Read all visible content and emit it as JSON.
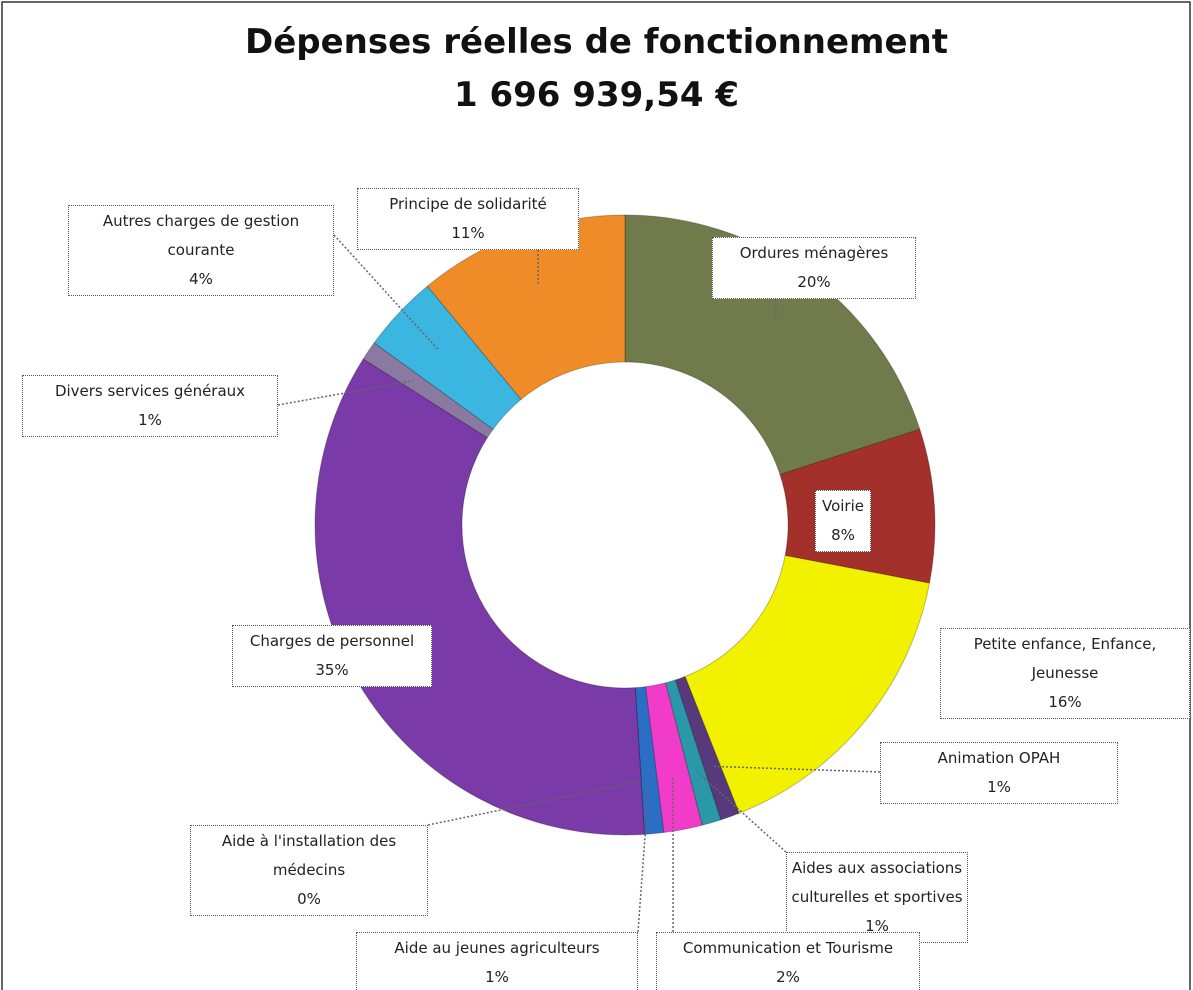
{
  "chart_data": {
    "type": "donut",
    "title": "Dépenses réelles de fonctionnement",
    "subtitle": "1 696 939,54 €",
    "categories": [
      "Ordures ménagères",
      "Voirie",
      "Petite enfance, Enfance, Jeunesse",
      "Animation OPAH",
      "Aides aux associations culturelles et sportives",
      "Communication et Tourisme",
      "Aide au jeunes agriculteurs",
      "Aide à l'installation des médecins",
      "Charges de personnel",
      "Divers services généraux",
      "Autres charges de gestion courante",
      "Principe de solidarité"
    ],
    "values": [
      20,
      8,
      16,
      1,
      1,
      2,
      1,
      0,
      35,
      1,
      4,
      11
    ],
    "value_labels": [
      "20%",
      "8%",
      "16%",
      "1%",
      "1%",
      "2%",
      "1%",
      "0%",
      "35%",
      "1%",
      "4%",
      "11%"
    ],
    "colors": [
      "#6f7b4b",
      "#a3302b",
      "#f2f200",
      "#583a7c",
      "#2a98a8",
      "#f03cc8",
      "#2a6ec6",
      "#c01f3a",
      "#7a3aa8",
      "#8a7aa2",
      "#3ab6e0",
      "#f08c28"
    ]
  }
}
